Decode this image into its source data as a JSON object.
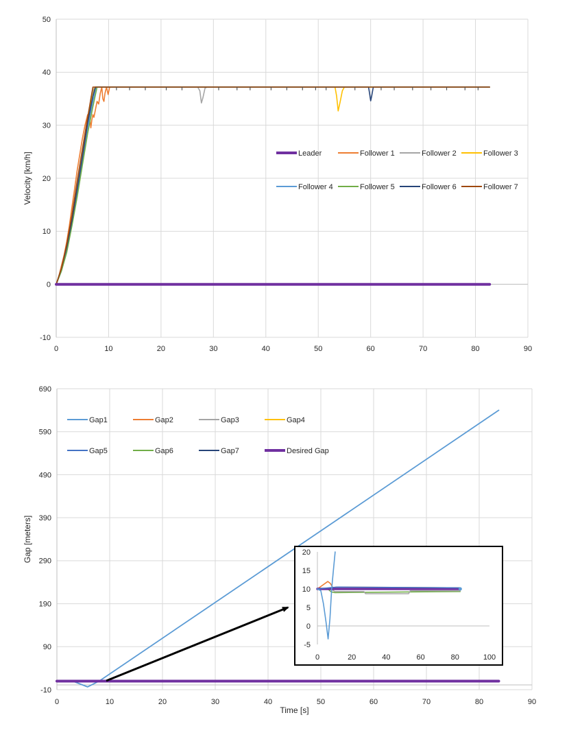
{
  "chart_data": [
    {
      "type": "line",
      "title": "",
      "xlabel": "",
      "ylabel": "Velocity [km/h]",
      "xlim": [
        0,
        90
      ],
      "ylim": [
        -10,
        50
      ],
      "xticks": [
        0,
        10,
        20,
        30,
        40,
        50,
        60,
        70,
        80,
        90
      ],
      "yticks": [
        -10,
        0,
        10,
        20,
        30,
        40,
        50
      ],
      "grid": true,
      "legend": "center-right, 2 rows",
      "series": [
        {
          "name": "Leader",
          "color": "#7030A0",
          "width": 4,
          "x": [
            0,
            82.7
          ],
          "y": [
            0,
            0
          ]
        },
        {
          "name": "Follower 1",
          "color": "#ED7D31",
          "width": 1.6,
          "x": [
            0,
            0.5,
            1,
            1.5,
            2,
            2.5,
            3,
            3.5,
            4,
            4.5,
            5,
            5.5,
            6,
            6.4,
            6.6,
            6.8,
            7,
            7.2,
            7.5,
            7.8,
            8.1,
            8.4,
            8.7,
            8.9,
            9.1,
            9.3,
            9.6,
            9.9,
            10.2,
            82.7
          ],
          "y": [
            0,
            1.5,
            3.5,
            5.5,
            8,
            11,
            14.5,
            18,
            21.5,
            24.5,
            27.5,
            30,
            32,
            31.5,
            29.5,
            31,
            32,
            31.5,
            33,
            34.5,
            34,
            36,
            37.2,
            35,
            34.5,
            36,
            37.2,
            35.8,
            37.2,
            37.2
          ]
        },
        {
          "name": "Follower 2",
          "color": "#A5A5A5",
          "width": 1.6,
          "x": [
            0,
            1,
            2,
            3,
            4,
            5,
            6,
            6.7,
            7.3,
            27,
            27.4,
            27.7,
            28,
            28.4,
            28.8,
            82.7
          ],
          "y": [
            0,
            3,
            7,
            12.5,
            18.5,
            24.5,
            31,
            35.5,
            37.2,
            37.2,
            36.5,
            34.2,
            35.2,
            37,
            37.2,
            37.2
          ]
        },
        {
          "name": "Follower 3",
          "color": "#FFC000",
          "width": 1.6,
          "x": [
            0,
            1,
            2,
            3,
            4,
            5,
            6,
            6.8,
            7.4,
            53.2,
            53.5,
            53.8,
            54.2,
            54.6,
            55,
            82.7
          ],
          "y": [
            0,
            3,
            7,
            12,
            18,
            24,
            30.5,
            35,
            37.2,
            37.2,
            35.5,
            32.7,
            34.5,
            36.5,
            37.2,
            37.2
          ]
        },
        {
          "name": "Follower 4",
          "color": "#5B9BD5",
          "width": 1.6,
          "x": [
            0,
            1,
            2,
            3,
            4,
            5,
            6,
            7,
            7.6,
            82.7
          ],
          "y": [
            0,
            2.5,
            6.5,
            11.5,
            17.5,
            23.5,
            29.5,
            34.5,
            37.2,
            37.2
          ]
        },
        {
          "name": "Follower 5",
          "color": "#70AD47",
          "width": 1.6,
          "x": [
            0,
            1,
            2,
            3,
            4,
            5,
            6,
            7,
            7.8,
            82.7
          ],
          "y": [
            0,
            2.5,
            6,
            11,
            16.5,
            22.5,
            28.5,
            33.5,
            37.2,
            37.2
          ]
        },
        {
          "name": "Follower 6",
          "color": "#264478",
          "width": 1.6,
          "x": [
            0,
            1,
            2,
            3,
            4,
            5,
            6,
            7,
            7.5,
            59.6,
            59.8,
            60,
            60.2,
            60.5,
            82.7
          ],
          "y": [
            0,
            3,
            7,
            12,
            18,
            24,
            30.5,
            35.5,
            37.2,
            37.2,
            36,
            34.6,
            35.5,
            37.2,
            37.2
          ]
        },
        {
          "name": "Follower 7",
          "color": "#9E480E",
          "width": 1.6,
          "x": [
            0,
            1,
            2,
            3,
            4,
            5,
            6,
            7,
            82.7
          ],
          "y": [
            0,
            3,
            7.5,
            13,
            19.5,
            25.5,
            31.5,
            37.2,
            37.2
          ]
        }
      ]
    },
    {
      "type": "line",
      "title": "",
      "xlabel": "Time [s]",
      "ylabel": "Gap [meters]",
      "xlim": [
        0,
        90
      ],
      "ylim": [
        -10,
        690
      ],
      "xticks": [
        0,
        10,
        20,
        30,
        40,
        50,
        60,
        70,
        80,
        90
      ],
      "yticks": [
        -10,
        90,
        190,
        290,
        390,
        490,
        590,
        690
      ],
      "grid": true,
      "legend": "top-left, 2 rows",
      "series": [
        {
          "name": "Gap1",
          "color": "#5B9BD5",
          "width": 1.8,
          "x": [
            0,
            3,
            5.8,
            8,
            83.7
          ],
          "y": [
            10,
            10,
            -3.5,
            10,
            640
          ]
        },
        {
          "name": "Gap2",
          "color": "#ED7D31",
          "width": 1.6,
          "x": [
            0,
            83.7
          ],
          "y": [
            10,
            10
          ]
        },
        {
          "name": "Gap3",
          "color": "#A5A5A5",
          "width": 1.6,
          "x": [
            0,
            83.7
          ],
          "y": [
            10,
            10
          ]
        },
        {
          "name": "Gap4",
          "color": "#FFC000",
          "width": 1.6,
          "x": [
            0,
            83.7
          ],
          "y": [
            10,
            10
          ]
        },
        {
          "name": "Gap5",
          "color": "#4472C4",
          "width": 1.6,
          "x": [
            0,
            83.7
          ],
          "y": [
            10,
            10
          ]
        },
        {
          "name": "Gap6",
          "color": "#70AD47",
          "width": 1.6,
          "x": [
            0,
            83.7
          ],
          "y": [
            10,
            10
          ]
        },
        {
          "name": "Gap7",
          "color": "#264478",
          "width": 1.6,
          "x": [
            0,
            83.7
          ],
          "y": [
            10,
            10
          ]
        },
        {
          "name": "Desired Gap",
          "color": "#7030A0",
          "width": 4,
          "x": [
            0,
            83.7
          ],
          "y": [
            10,
            10
          ]
        }
      ]
    },
    {
      "type": "line",
      "title": "",
      "xlabel": "",
      "ylabel": "",
      "xlim": [
        0,
        100
      ],
      "ylim": [
        -5,
        20
      ],
      "xticks": [
        0,
        20,
        40,
        60,
        80,
        100
      ],
      "yticks": [
        -5,
        0,
        5,
        10,
        15,
        20
      ],
      "grid": false,
      "legend": "none",
      "series": [
        {
          "color": "#70AD47",
          "width": 1.6,
          "x": [
            0,
            6,
            8,
            10,
            83
          ],
          "y": [
            10,
            10,
            9.2,
            9,
            9.3
          ]
        },
        {
          "color": "#A5A5A5",
          "width": 1.6,
          "x": [
            0,
            8,
            10,
            27,
            28,
            53,
            54,
            83
          ],
          "y": [
            10,
            10,
            9.3,
            9.3,
            8.7,
            8.7,
            9.5,
            9.5
          ]
        },
        {
          "color": "#ED7D31",
          "width": 1.6,
          "x": [
            0,
            3,
            6,
            7.5,
            9,
            11,
            83
          ],
          "y": [
            10,
            11,
            12,
            11.5,
            10.3,
            10.5,
            10.3
          ]
        },
        {
          "color": "#7030A0",
          "width": 3.5,
          "x": [
            0,
            83
          ],
          "y": [
            10,
            10
          ]
        },
        {
          "color": "#4472C4",
          "width": 1.6,
          "x": [
            0,
            9,
            12,
            83
          ],
          "y": [
            10,
            10.4,
            10.5,
            10.3
          ]
        },
        {
          "color": "#5B9BD5",
          "width": 1.6,
          "x": [
            0,
            2,
            3.5,
            5,
            6.2,
            7.3,
            8.3,
            9.3,
            10.3
          ],
          "y": [
            10,
            9.5,
            6,
            1,
            -3.5,
            2,
            10,
            15,
            20
          ]
        }
      ]
    }
  ]
}
